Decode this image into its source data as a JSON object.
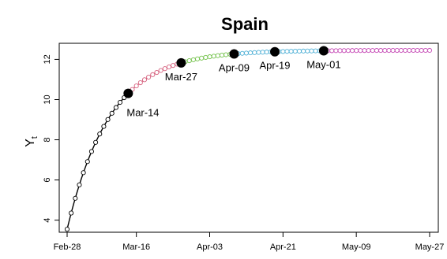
{
  "chart_data": {
    "type": "line",
    "title": "Spain",
    "ylabel": "Y",
    "ylabel_subscript": "t",
    "xlabel": "",
    "x_start": "Feb-28",
    "x_end": "May-27",
    "xlim_days": [
      0,
      89
    ],
    "ylim": [
      3.4,
      12.8
    ],
    "x_ticks": [
      {
        "day": 0,
        "label": "Feb-28"
      },
      {
        "day": 17,
        "label": "Mar-16"
      },
      {
        "day": 35,
        "label": "Apr-03"
      },
      {
        "day": 53,
        "label": "Apr-21"
      },
      {
        "day": 71,
        "label": "May-09"
      },
      {
        "day": 89,
        "label": "May-27"
      }
    ],
    "y_ticks": [
      4,
      6,
      8,
      10,
      12
    ],
    "grid": false,
    "legend": "none",
    "curve": {
      "y0": 3.55,
      "ymax": 12.45,
      "rate": 0.095
    },
    "phases": [
      {
        "from_day": 0,
        "to_day": 15,
        "color": "#000000"
      },
      {
        "from_day": 15,
        "to_day": 28,
        "color": "#d6617e"
      },
      {
        "from_day": 28,
        "to_day": 41,
        "color": "#72c24a"
      },
      {
        "from_day": 41,
        "to_day": 51,
        "color": "#4fb0d6"
      },
      {
        "from_day": 51,
        "to_day": 63,
        "color": "#4fb0d6"
      },
      {
        "from_day": 63,
        "to_day": 89,
        "color": "#c548b5"
      }
    ],
    "breakpoints": [
      {
        "day": 15,
        "label": "Mar-14",
        "label_pos": "below-right"
      },
      {
        "day": 28,
        "label": "Mar-27",
        "label_pos": "below"
      },
      {
        "day": 41,
        "label": "Apr-09",
        "label_pos": "below"
      },
      {
        "day": 51,
        "label": "Apr-19",
        "label_pos": "below"
      },
      {
        "day": 63,
        "label": "May-01",
        "label_pos": "below"
      }
    ]
  }
}
